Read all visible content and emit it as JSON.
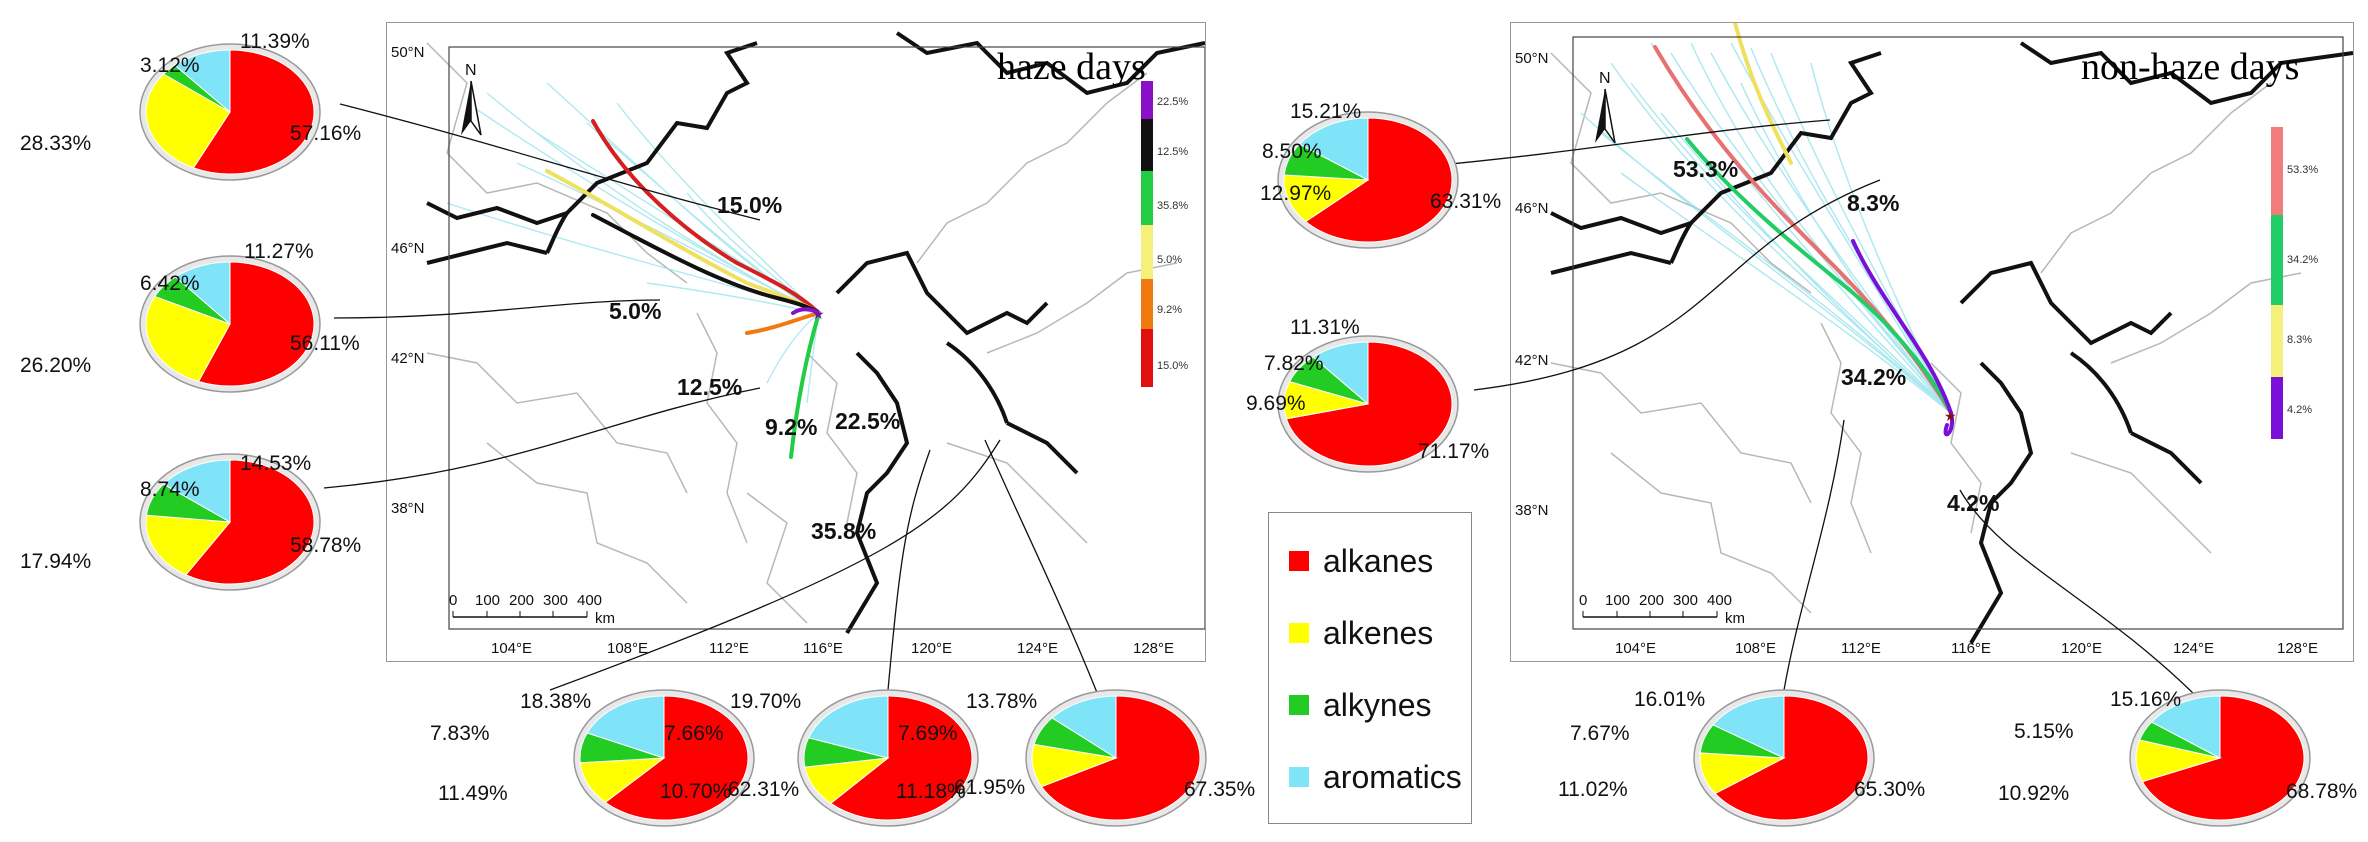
{
  "maps": {
    "haze": {
      "title": "haze days",
      "lat_ticks": [
        "50°N",
        "46°N",
        "42°N",
        "38°N"
      ],
      "lon_ticks": [
        "104°E",
        "108°E",
        "112°E",
        "116°E",
        "120°E",
        "124°E",
        "128°E"
      ],
      "scale_ticks": [
        "0",
        "100",
        "200",
        "300",
        "400"
      ],
      "scale_unit": "km",
      "north": "N",
      "colorbar": [
        {
          "label": "22.5%",
          "color": "#8a10c8"
        },
        {
          "label": "12.5%",
          "color": "#111111"
        },
        {
          "label": "35.8%",
          "color": "#22cc44"
        },
        {
          "label": "5.0%",
          "color": "#f5f07a"
        },
        {
          "label": "9.2%",
          "color": "#f07a10"
        },
        {
          "label": "15.0%",
          "color": "#e01010"
        }
      ],
      "clusters": [
        {
          "label": "15.0%",
          "color": "#d42020"
        },
        {
          "label": "5.0%",
          "color": "#f0e060"
        },
        {
          "label": "12.5%",
          "color": "#111111"
        },
        {
          "label": "9.2%",
          "color": "#f07a10"
        },
        {
          "label": "22.5%",
          "color": "#8a10c8"
        },
        {
          "label": "35.8%",
          "color": "#22cc44"
        }
      ]
    },
    "nonhaze": {
      "title": "non-haze days",
      "lat_ticks": [
        "50°N",
        "46°N",
        "42°N",
        "38°N"
      ],
      "lon_ticks": [
        "104°E",
        "108°E",
        "112°E",
        "116°E",
        "120°E",
        "124°E",
        "128°E"
      ],
      "scale_ticks": [
        "0",
        "100",
        "200",
        "300",
        "400"
      ],
      "scale_unit": "km",
      "north": "N",
      "colorbar": [
        {
          "label": "53.3%",
          "color": "#f07c7c"
        },
        {
          "label": "34.2%",
          "color": "#22cc66"
        },
        {
          "label": "8.3%",
          "color": "#f5f07a"
        },
        {
          "label": "4.2%",
          "color": "#7a10d8"
        }
      ],
      "clusters": [
        {
          "label": "53.3%",
          "color": "#e87070"
        },
        {
          "label": "8.3%",
          "color": "#f0e060"
        },
        {
          "label": "34.2%",
          "color": "#22cc66"
        },
        {
          "label": "4.2%",
          "color": "#7a10d8"
        }
      ]
    }
  },
  "legend": {
    "items": [
      {
        "label": "alkanes",
        "color": "#ff0000"
      },
      {
        "label": "alkenes",
        "color": "#ffff00"
      },
      {
        "label": "alkynes",
        "color": "#22cc22"
      },
      {
        "label": "aromatics",
        "color": "#7fe4f8"
      }
    ]
  },
  "chart_data": {
    "type": "pie",
    "categories": [
      "alkanes",
      "alkenes",
      "alkynes",
      "aromatics"
    ],
    "pies": [
      {
        "group": "haze",
        "cluster": "15.0%",
        "values": [
          57.16,
          28.33,
          3.12,
          11.39
        ],
        "labels": [
          "57.16%",
          "28.33%",
          "3.12%",
          "11.39%"
        ]
      },
      {
        "group": "haze",
        "cluster": "5.0%",
        "values": [
          56.11,
          26.2,
          6.42,
          11.27
        ],
        "labels": [
          "56.11%",
          "26.20%",
          "6.42%",
          "11.27%"
        ]
      },
      {
        "group": "haze",
        "cluster": "12.5%",
        "values": [
          58.78,
          17.94,
          8.74,
          14.53
        ],
        "labels": [
          "58.78%",
          "17.94%",
          "8.74%",
          "14.53%"
        ]
      },
      {
        "group": "haze",
        "cluster": "9.2%",
        "values": [
          62.31,
          11.49,
          7.83,
          18.38
        ],
        "labels": [
          "62.31%",
          "11.49%",
          "7.83%",
          "18.38%"
        ]
      },
      {
        "group": "haze",
        "cluster": "35.8%",
        "values": [
          61.95,
          10.7,
          7.66,
          19.7
        ],
        "labels": [
          "61.95%",
          "10.70%",
          "7.66%",
          "19.70%"
        ]
      },
      {
        "group": "haze",
        "cluster": "22.5%",
        "values": [
          67.35,
          11.18,
          7.69,
          13.78
        ],
        "labels": [
          "67.35%",
          "11.18%",
          "7.69%",
          "13.78%"
        ]
      },
      {
        "group": "nonhaze",
        "cluster": "53.3%",
        "values": [
          63.31,
          12.97,
          8.5,
          15.21
        ],
        "labels": [
          "63.31%",
          "12.97%",
          "8.50%",
          "15.21%"
        ]
      },
      {
        "group": "nonhaze",
        "cluster": "8.3%",
        "values": [
          71.17,
          9.69,
          7.82,
          11.31
        ],
        "labels": [
          "71.17%",
          "9.69%",
          "7.82%",
          "11.31%"
        ]
      },
      {
        "group": "nonhaze",
        "cluster": "34.2%",
        "values": [
          65.3,
          11.02,
          7.67,
          16.01
        ],
        "labels": [
          "65.30%",
          "11.02%",
          "7.67%",
          "16.01%"
        ]
      },
      {
        "group": "nonhaze",
        "cluster": "4.2%",
        "values": [
          68.78,
          10.92,
          5.15,
          15.16
        ],
        "labels": [
          "68.78%",
          "10.92%",
          "5.15%",
          "15.16%"
        ]
      }
    ]
  }
}
